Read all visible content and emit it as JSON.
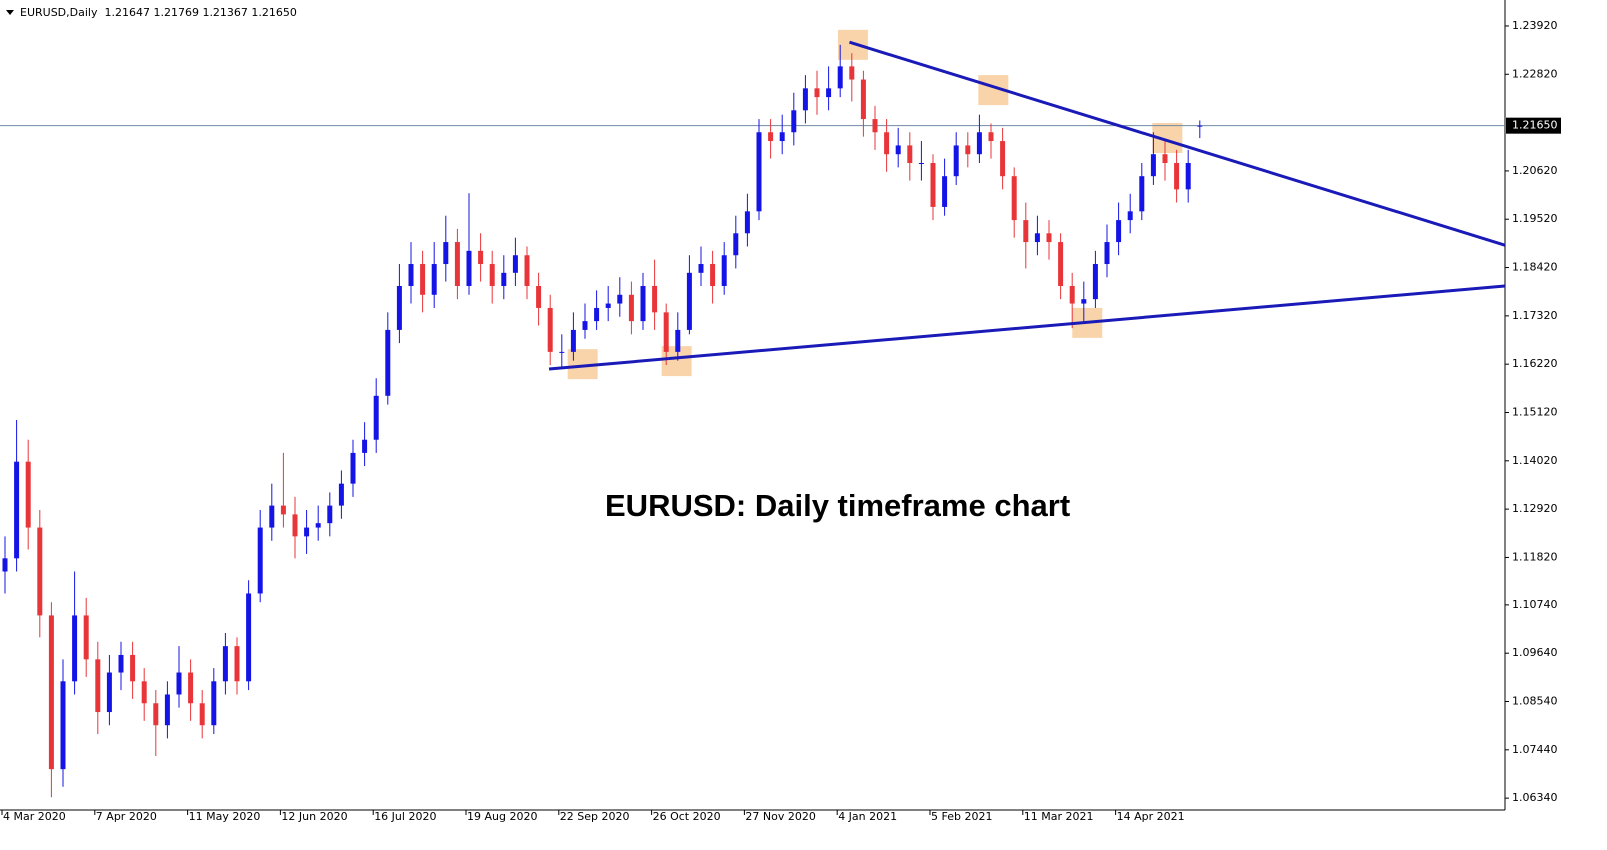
{
  "chart_data": {
    "type": "candlestick",
    "header": "EURUSD,Daily  1.21647 1.21769 1.21367 1.21650",
    "annotation": "EURUSD: Daily timeframe chart",
    "categories": [
      "4 Mar 2020",
      null,
      null,
      null,
      null,
      null,
      null,
      null,
      "7 Apr 2020",
      null,
      null,
      null,
      null,
      null,
      null,
      null,
      "11 May 2020",
      null,
      null,
      null,
      null,
      null,
      null,
      null,
      "12 Jun 2020",
      null,
      null,
      null,
      null,
      null,
      null,
      null,
      "16 Jul 2020",
      null,
      null,
      null,
      null,
      null,
      null,
      null,
      "19 Aug 2020",
      null,
      null,
      null,
      null,
      null,
      null,
      null,
      "22 Sep 2020",
      null,
      null,
      null,
      null,
      null,
      null,
      null,
      "26 Oct 2020",
      null,
      null,
      null,
      null,
      null,
      null,
      null,
      "27 Nov 2020",
      null,
      null,
      null,
      null,
      null,
      null,
      null,
      "4 Jan 2021",
      null,
      null,
      null,
      null,
      null,
      null,
      null,
      "5 Feb 2021",
      null,
      null,
      null,
      null,
      null,
      null,
      null,
      "11 Mar 2021",
      null,
      null,
      null,
      null,
      null,
      null,
      null,
      "14 Apr 2021",
      null,
      null,
      null,
      null,
      null,
      null,
      null
    ],
    "open": [
      1.115,
      1.118,
      1.14,
      1.125,
      1.105,
      1.07,
      1.09,
      1.105,
      1.095,
      1.083,
      1.092,
      1.096,
      1.09,
      1.085,
      1.08,
      1.087,
      1.092,
      1.085,
      1.08,
      1.09,
      1.098,
      1.09,
      1.11,
      1.125,
      1.13,
      1.128,
      1.123,
      1.125,
      1.126,
      1.13,
      1.135,
      1.142,
      1.145,
      1.155,
      1.17,
      1.18,
      1.185,
      1.178,
      1.185,
      1.19,
      1.18,
      1.188,
      1.185,
      1.18,
      1.183,
      1.187,
      1.18,
      1.175,
      1.165,
      1.165,
      1.17,
      1.172,
      1.175,
      1.176,
      1.178,
      1.172,
      1.18,
      1.174,
      1.165,
      1.17,
      1.183,
      1.185,
      1.18,
      1.187,
      1.192,
      1.197,
      1.215,
      1.213,
      1.215,
      1.22,
      1.225,
      1.223,
      1.225,
      1.23,
      1.227,
      1.218,
      1.215,
      1.21,
      1.212,
      1.208,
      1.208,
      1.198,
      1.205,
      1.212,
      1.21,
      1.215,
      1.213,
      1.205,
      1.195,
      1.19,
      1.192,
      1.19,
      1.18,
      1.176,
      1.177,
      1.185,
      1.19,
      1.195,
      1.197,
      1.205,
      1.21,
      1.208,
      1.202,
      1.21647
    ],
    "high": [
      1.123,
      1.1495,
      1.145,
      1.129,
      1.108,
      1.095,
      1.115,
      1.109,
      1.099,
      1.096,
      1.099,
      1.099,
      1.093,
      1.088,
      1.09,
      1.098,
      1.095,
      1.088,
      1.093,
      1.101,
      1.1,
      1.113,
      1.129,
      1.135,
      1.142,
      1.132,
      1.129,
      1.13,
      1.133,
      1.138,
      1.145,
      1.149,
      1.159,
      1.174,
      1.185,
      1.19,
      1.188,
      1.19,
      1.196,
      1.193,
      1.2011,
      1.192,
      1.188,
      1.187,
      1.191,
      1.189,
      1.183,
      1.178,
      1.169,
      1.174,
      1.176,
      1.179,
      1.18,
      1.182,
      1.181,
      1.183,
      1.186,
      1.176,
      1.174,
      1.187,
      1.189,
      1.188,
      1.19,
      1.196,
      1.201,
      1.218,
      1.218,
      1.219,
      1.224,
      1.228,
      1.229,
      1.23,
      1.2349,
      1.233,
      1.229,
      1.221,
      1.218,
      1.216,
      1.215,
      1.213,
      1.21,
      1.209,
      1.215,
      1.215,
      1.219,
      1.217,
      1.216,
      1.207,
      1.199,
      1.196,
      1.195,
      1.192,
      1.183,
      1.181,
      1.188,
      1.194,
      1.199,
      1.201,
      1.208,
      1.215,
      1.213,
      1.211,
      1.211,
      1.21769
    ],
    "low": [
      1.11,
      1.115,
      1.12,
      1.1,
      1.0636,
      1.066,
      1.087,
      1.091,
      1.078,
      1.08,
      1.088,
      1.086,
      1.081,
      1.073,
      1.077,
      1.084,
      1.081,
      1.077,
      1.078,
      1.087,
      1.087,
      1.088,
      1.108,
      1.122,
      1.125,
      1.118,
      1.119,
      1.122,
      1.123,
      1.127,
      1.132,
      1.139,
      1.142,
      1.153,
      1.167,
      1.176,
      1.174,
      1.175,
      1.181,
      1.177,
      1.178,
      1.181,
      1.176,
      1.177,
      1.18,
      1.177,
      1.171,
      1.162,
      1.1612,
      1.163,
      1.168,
      1.17,
      1.172,
      1.173,
      1.169,
      1.17,
      1.17,
      1.162,
      1.163,
      1.169,
      1.18,
      1.176,
      1.178,
      1.184,
      1.189,
      1.195,
      1.209,
      1.21,
      1.212,
      1.217,
      1.219,
      1.22,
      1.223,
      1.222,
      1.214,
      1.211,
      1.206,
      1.207,
      1.204,
      1.204,
      1.195,
      1.196,
      1.203,
      1.207,
      1.208,
      1.209,
      1.202,
      1.191,
      1.184,
      1.187,
      1.186,
      1.177,
      1.1704,
      1.172,
      1.175,
      1.182,
      1.187,
      1.192,
      1.195,
      1.203,
      1.204,
      1.199,
      1.199,
      1.21367
    ],
    "close": [
      1.118,
      1.14,
      1.125,
      1.105,
      1.07,
      1.09,
      1.105,
      1.095,
      1.083,
      1.092,
      1.096,
      1.09,
      1.085,
      1.08,
      1.087,
      1.092,
      1.085,
      1.08,
      1.09,
      1.098,
      1.09,
      1.11,
      1.125,
      1.13,
      1.128,
      1.123,
      1.125,
      1.126,
      1.13,
      1.135,
      1.142,
      1.145,
      1.155,
      1.17,
      1.18,
      1.185,
      1.178,
      1.185,
      1.19,
      1.18,
      1.188,
      1.185,
      1.18,
      1.183,
      1.187,
      1.18,
      1.175,
      1.165,
      1.165,
      1.17,
      1.172,
      1.175,
      1.176,
      1.178,
      1.172,
      1.18,
      1.174,
      1.165,
      1.17,
      1.183,
      1.185,
      1.18,
      1.187,
      1.192,
      1.197,
      1.215,
      1.213,
      1.215,
      1.22,
      1.225,
      1.223,
      1.225,
      1.23,
      1.227,
      1.218,
      1.215,
      1.21,
      1.212,
      1.208,
      1.208,
      1.198,
      1.205,
      1.212,
      1.21,
      1.215,
      1.213,
      1.205,
      1.195,
      1.19,
      1.192,
      1.19,
      1.18,
      1.176,
      1.177,
      1.185,
      1.19,
      1.195,
      1.197,
      1.205,
      1.21,
      1.208,
      1.202,
      1.208,
      1.2165
    ],
    "up_color": "#1414e6",
    "down_color": "#e8353a",
    "ylim": [
      1.0607,
      1.2442
    ],
    "yticks": [
      {
        "value": 1.0634,
        "label": "1.06340"
      },
      {
        "value": 1.0744,
        "label": "1.07440"
      },
      {
        "value": 1.0854,
        "label": "1.08540"
      },
      {
        "value": 1.0964,
        "label": "1.09640"
      },
      {
        "value": 1.1074,
        "label": "1.10740"
      },
      {
        "value": 1.1182,
        "label": "1.11820"
      },
      {
        "value": 1.1292,
        "label": "1.12920"
      },
      {
        "value": 1.1402,
        "label": "1.14020"
      },
      {
        "value": 1.1512,
        "label": "1.15120"
      },
      {
        "value": 1.1622,
        "label": "1.16220"
      },
      {
        "value": 1.1732,
        "label": "1.17320"
      },
      {
        "value": 1.1842,
        "label": "1.18420"
      },
      {
        "value": 1.1952,
        "label": "1.19520"
      },
      {
        "value": 1.2062,
        "label": "1.20620"
      },
      {
        "value": 1.2282,
        "label": "1.22820"
      },
      {
        "value": 1.2392,
        "label": "1.23920"
      }
    ],
    "price_line": {
      "value": 1.2165,
      "label": "1.21650",
      "color": "#6f8aa3"
    },
    "trendlines": {
      "color": "#1a1ab8",
      "lines": [
        {
          "x": [
            72.8,
            129.3
          ],
          "y": [
            1.2355,
            1.1893
          ]
        },
        {
          "x": [
            46.9,
            129.3
          ],
          "y": [
            1.1611,
            1.18
          ]
        }
      ]
    },
    "highlights": {
      "color": "#f7c58e",
      "points": [
        {
          "x": 49.8,
          "y": 1.1622
        },
        {
          "x": 57.9,
          "y": 1.1629
        },
        {
          "x": 73.1,
          "y": 1.2349
        },
        {
          "x": 85.2,
          "y": 1.2246
        },
        {
          "x": 93.3,
          "y": 1.1716
        },
        {
          "x": 100.2,
          "y": 1.2137
        }
      ]
    }
  }
}
